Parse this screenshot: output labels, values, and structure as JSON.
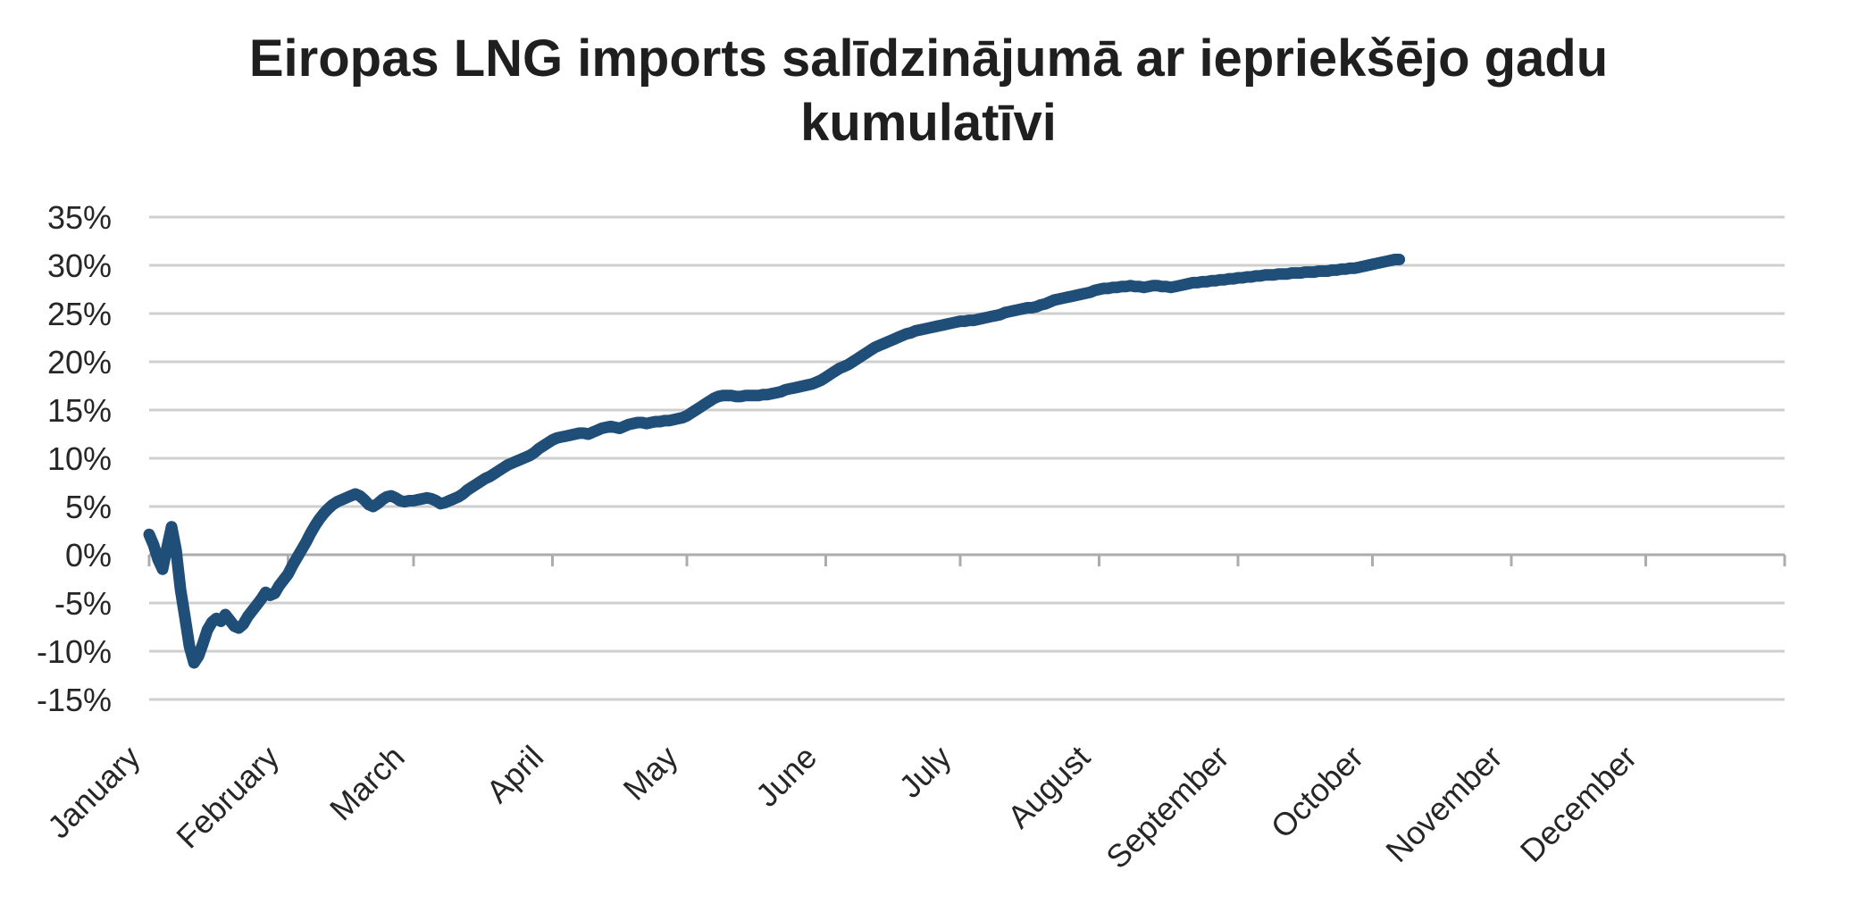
{
  "page": {
    "background_color": "#FFFFFF"
  },
  "chart_data": {
    "type": "line",
    "title_line1": "Eiropas LNG imports salīdzinājumā ar iepriekšējo gadu",
    "title_line2": "kumulatīvi",
    "legend": "none",
    "grid": "horizontal",
    "colors": {
      "line": "#1F4E79",
      "gridline": "#CFCFCF",
      "axis": "#ACACAC",
      "title_text": "#1F1F1F",
      "label_text": "#262626"
    },
    "y_axis": {
      "unit": "%",
      "min": -15,
      "max": 35,
      "step": 5,
      "labels": [
        "35%",
        "30%",
        "25%",
        "20%",
        "15%",
        "10%",
        "5%",
        "0%",
        "-5%",
        "-10%",
        "-15%"
      ],
      "values": [
        35,
        30,
        25,
        20,
        15,
        10,
        5,
        0,
        -5,
        -10,
        -15
      ]
    },
    "x_axis": {
      "categories": [
        "January",
        "February",
        "March",
        "April",
        "May",
        "June",
        "July",
        "August",
        "September",
        "October",
        "November",
        "December"
      ],
      "month_start_days": [
        1,
        32,
        60,
        91,
        121,
        152,
        182,
        213,
        244,
        274,
        305,
        335
      ],
      "tick_days": [
        1,
        32,
        60,
        91,
        121,
        152,
        182,
        213,
        244,
        274,
        305,
        335,
        366
      ],
      "domain_days": [
        1,
        366
      ],
      "label_rotation_deg": -45
    },
    "series": [
      {
        "cadence": "daily",
        "start_day": 1,
        "end_day": 280,
        "values_pct": [
          2.1,
          1.0,
          -0.5,
          -1.5,
          0.8,
          2.9,
          0.5,
          -3.6,
          -6.5,
          -9.5,
          -11.2,
          -10.5,
          -9.2,
          -7.8,
          -7.0,
          -6.6,
          -6.9,
          -6.2,
          -6.8,
          -7.4,
          -7.6,
          -7.2,
          -6.4,
          -5.8,
          -5.2,
          -4.6,
          -3.9,
          -4.2,
          -4.0,
          -3.2,
          -2.6,
          -2.0,
          -1.1,
          -0.3,
          0.5,
          1.3,
          2.2,
          3.0,
          3.7,
          4.3,
          4.8,
          5.2,
          5.5,
          5.7,
          5.9,
          6.1,
          6.3,
          6.1,
          5.7,
          5.2,
          5.0,
          5.3,
          5.7,
          6.0,
          6.1,
          5.9,
          5.6,
          5.5,
          5.6,
          5.6,
          5.7,
          5.8,
          5.9,
          5.8,
          5.6,
          5.3,
          5.4,
          5.6,
          5.8,
          6.0,
          6.3,
          6.7,
          7.0,
          7.3,
          7.6,
          7.9,
          8.1,
          8.4,
          8.7,
          9.0,
          9.3,
          9.5,
          9.7,
          9.9,
          10.1,
          10.3,
          10.6,
          11.0,
          11.3,
          11.6,
          11.9,
          12.1,
          12.2,
          12.3,
          12.4,
          12.5,
          12.6,
          12.6,
          12.5,
          12.7,
          12.9,
          13.1,
          13.2,
          13.3,
          13.2,
          13.1,
          13.3,
          13.5,
          13.6,
          13.7,
          13.7,
          13.6,
          13.7,
          13.8,
          13.8,
          13.9,
          13.9,
          14.0,
          14.1,
          14.2,
          14.4,
          14.7,
          15.0,
          15.3,
          15.6,
          15.9,
          16.2,
          16.4,
          16.5,
          16.5,
          16.5,
          16.4,
          16.4,
          16.5,
          16.5,
          16.5,
          16.5,
          16.6,
          16.6,
          16.7,
          16.8,
          16.9,
          17.1,
          17.2,
          17.3,
          17.4,
          17.5,
          17.6,
          17.7,
          17.9,
          18.1,
          18.4,
          18.7,
          19.0,
          19.3,
          19.5,
          19.7,
          20.0,
          20.3,
          20.6,
          20.9,
          21.2,
          21.5,
          21.7,
          21.9,
          22.1,
          22.3,
          22.5,
          22.7,
          22.9,
          23.0,
          23.2,
          23.3,
          23.4,
          23.5,
          23.6,
          23.7,
          23.8,
          23.9,
          24.0,
          24.1,
          24.2,
          24.2,
          24.3,
          24.3,
          24.4,
          24.5,
          24.6,
          24.7,
          24.8,
          24.9,
          25.1,
          25.2,
          25.3,
          25.4,
          25.5,
          25.6,
          25.6,
          25.7,
          25.9,
          26.0,
          26.2,
          26.4,
          26.5,
          26.6,
          26.7,
          26.8,
          26.9,
          27.0,
          27.1,
          27.2,
          27.4,
          27.5,
          27.6,
          27.6,
          27.7,
          27.7,
          27.8,
          27.8,
          27.9,
          27.8,
          27.8,
          27.7,
          27.8,
          27.9,
          27.9,
          27.8,
          27.8,
          27.7,
          27.8,
          27.9,
          28.0,
          28.1,
          28.2,
          28.2,
          28.3,
          28.3,
          28.4,
          28.4,
          28.5,
          28.5,
          28.6,
          28.6,
          28.7,
          28.7,
          28.8,
          28.8,
          28.9,
          28.9,
          29.0,
          29.0,
          29.0,
          29.1,
          29.1,
          29.1,
          29.2,
          29.2,
          29.2,
          29.3,
          29.3,
          29.3,
          29.4,
          29.4,
          29.4,
          29.5,
          29.5,
          29.6,
          29.6,
          29.7,
          29.7,
          29.8,
          29.9,
          30.0,
          30.1,
          30.2,
          30.3,
          30.4,
          30.5,
          30.6,
          30.6
        ]
      }
    ]
  }
}
